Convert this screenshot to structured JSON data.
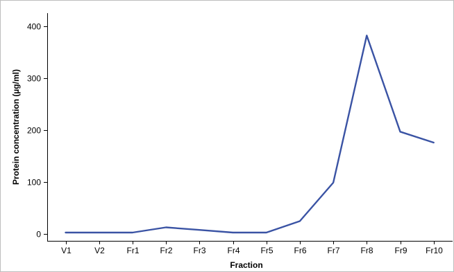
{
  "chart_data": {
    "type": "line",
    "title": "",
    "xlabel": "Fraction",
    "ylabel": "Protein concentration (µg/ml)",
    "categories": [
      "V1",
      "V2",
      "Fr1",
      "Fr2",
      "Fr3",
      "Fr4",
      "Fr5",
      "Fr6",
      "Fr7",
      "Fr8",
      "Fr9",
      "Fr10"
    ],
    "series": [
      {
        "values": [
          3,
          3,
          3,
          13,
          8,
          3,
          3,
          25,
          99,
          382,
          197,
          176
        ],
        "color": "#3a53a4"
      }
    ],
    "ylim": [
      -13,
      425
    ],
    "yticks": [
      0,
      100,
      200,
      300,
      400
    ],
    "grid": false,
    "legend": "none"
  }
}
